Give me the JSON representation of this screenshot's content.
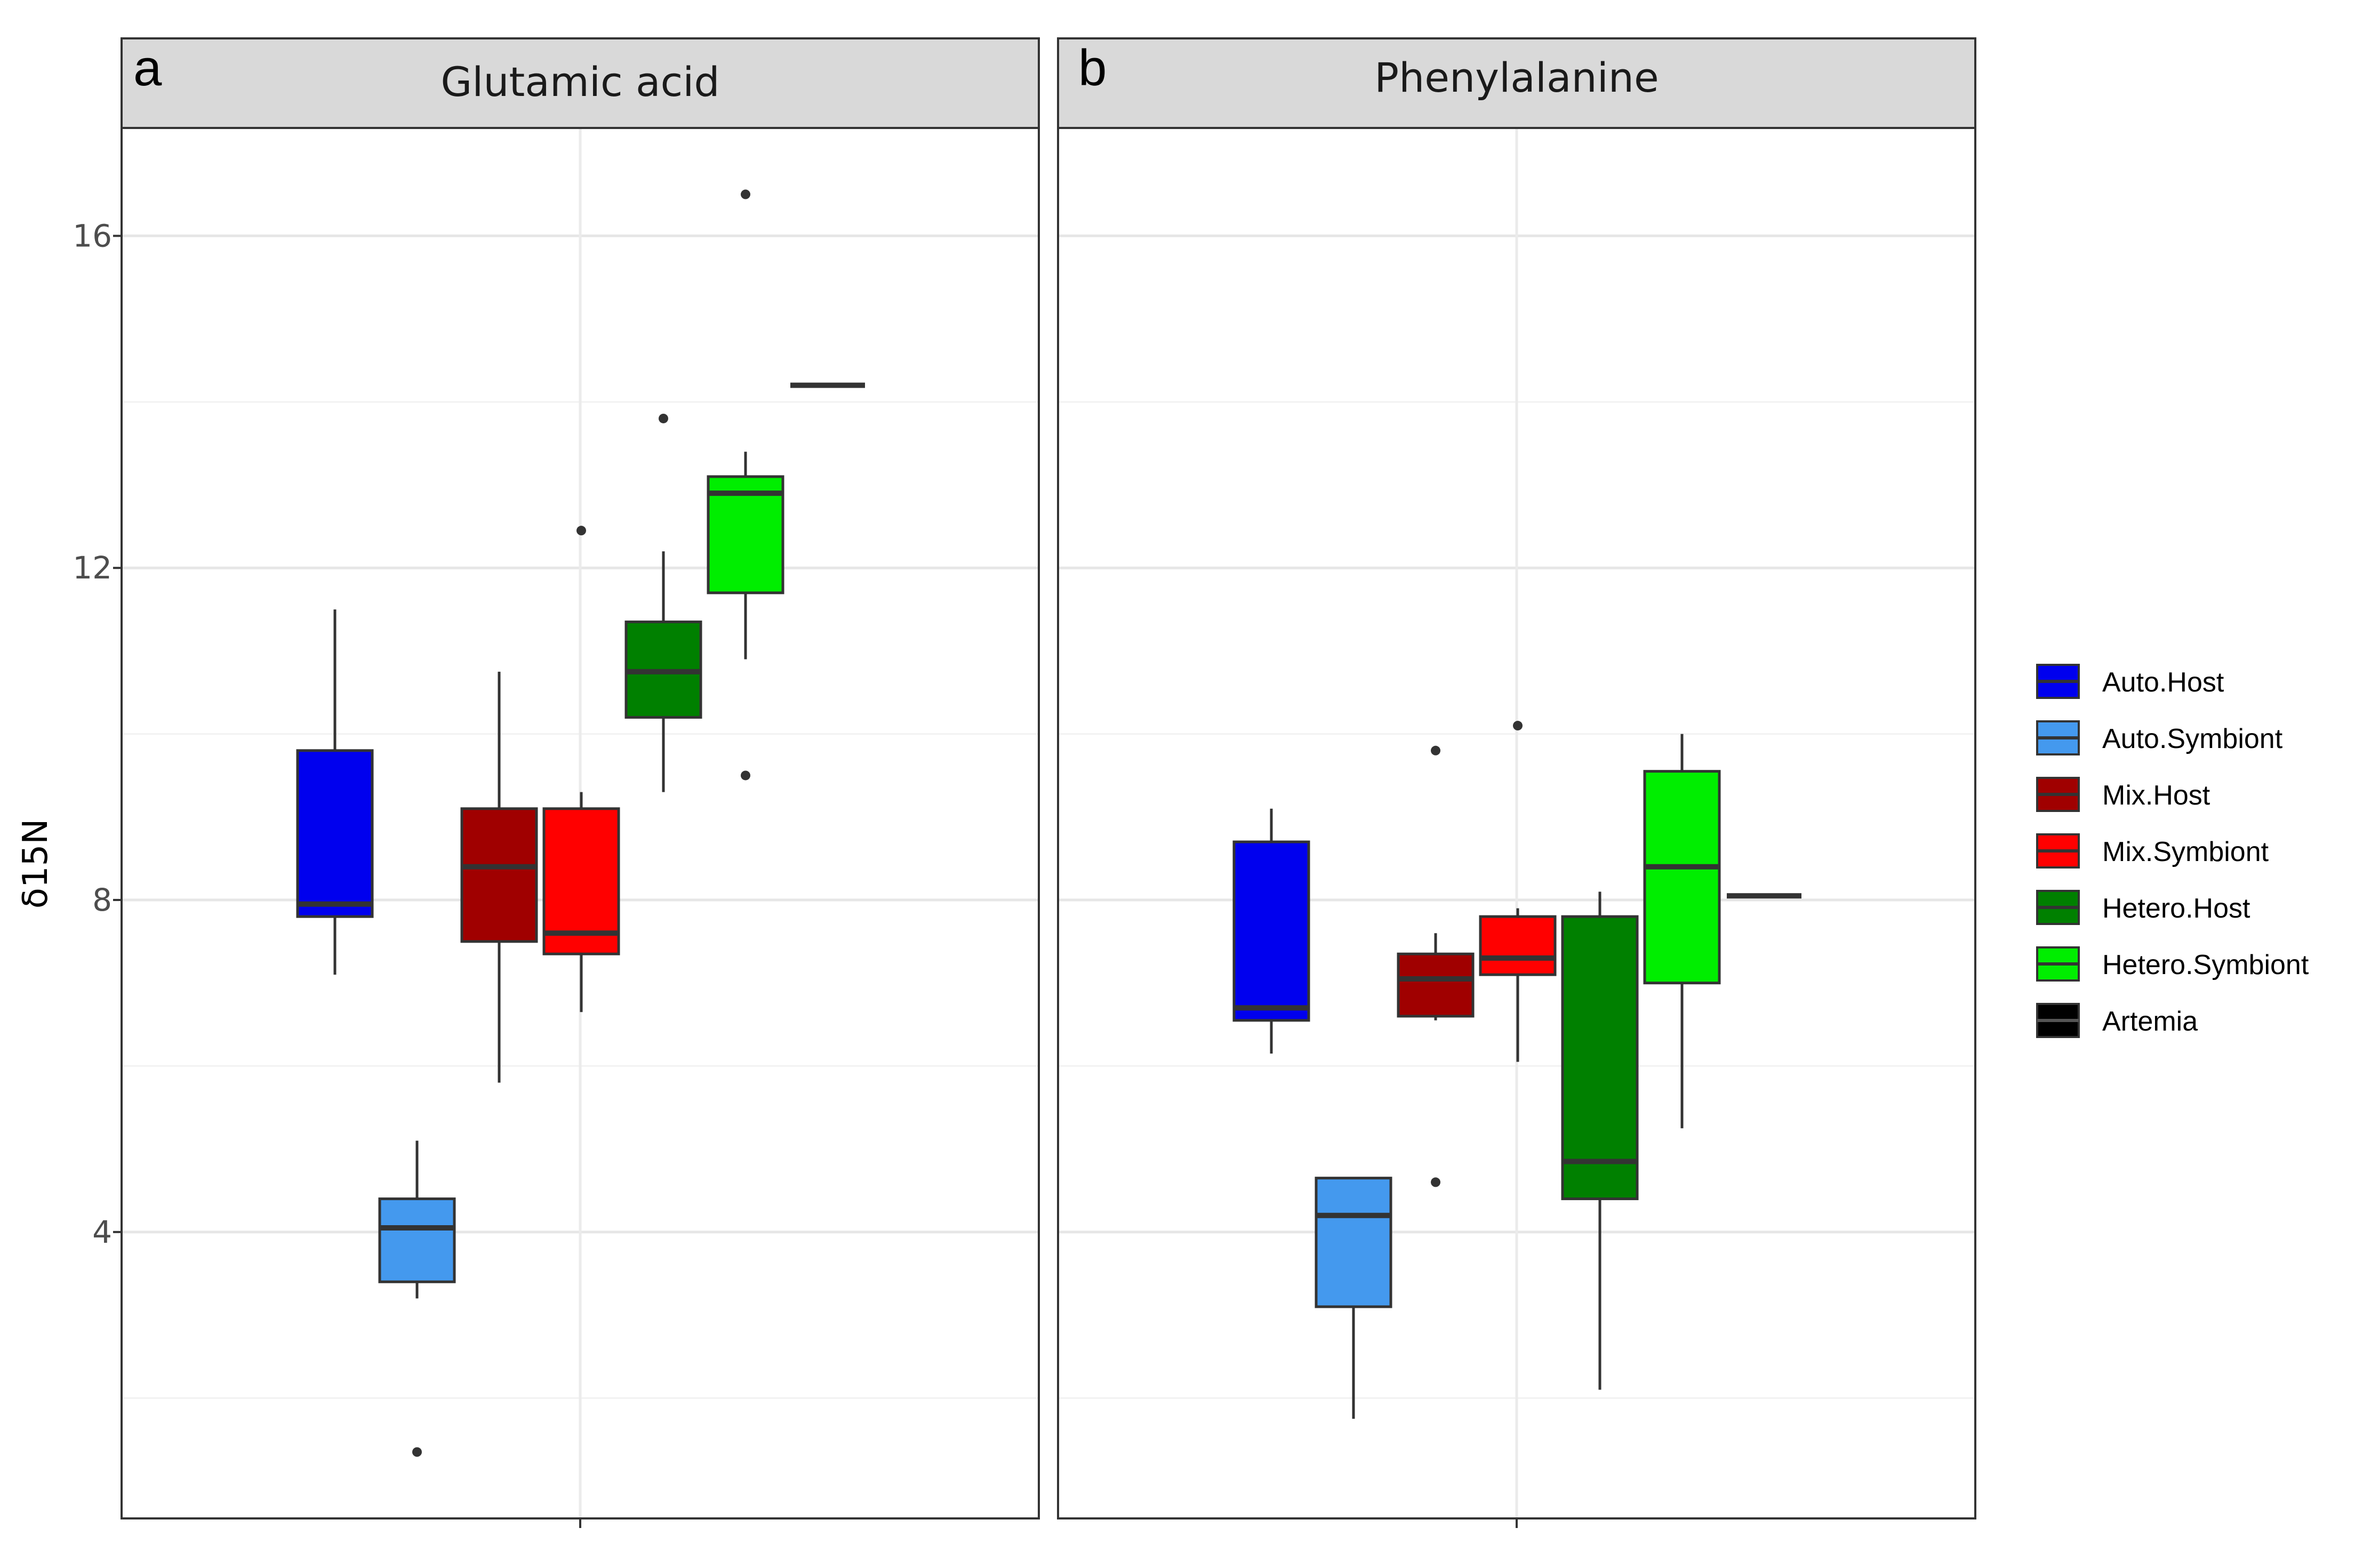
{
  "chart_data": {
    "type": "boxplot",
    "ylabel": "δ15N",
    "xlabel": "",
    "ylim": [
      0.55,
      17.3
    ],
    "yticks": [
      4,
      8,
      12,
      16
    ],
    "y_minor_gridlines": [
      2,
      6,
      10,
      14
    ],
    "grid": true,
    "legend_position": "right",
    "groups": [
      "Auto.Host",
      "Auto.Symbiont",
      "Mix.Host",
      "Mix.Symbiont",
      "Hetero.Host",
      "Hetero.Symbiont",
      "Artemia"
    ],
    "colors": {
      "Auto.Host": "#0000ee",
      "Auto.Symbiont": "#4499ee",
      "Mix.Host": "#a00000",
      "Mix.Symbiont": "#ff0000",
      "Hetero.Host": "#008000",
      "Hetero.Symbiont": "#00ee00",
      "Artemia": "#000000"
    },
    "panels": [
      {
        "tag": "a",
        "title": "Glutamic acid",
        "boxes": [
          {
            "group": "Auto.Host",
            "whisker_low": 7.1,
            "q1": 7.8,
            "median": 7.95,
            "q3": 9.8,
            "whisker_high": 11.5,
            "outliers": []
          },
          {
            "group": "Auto.Symbiont",
            "whisker_low": 3.2,
            "q1": 3.4,
            "median": 4.05,
            "q3": 4.4,
            "whisker_high": 5.1,
            "outliers": [
              1.35
            ]
          },
          {
            "group": "Mix.Host",
            "whisker_low": 5.8,
            "q1": 7.5,
            "median": 8.4,
            "q3": 9.1,
            "whisker_high": 10.75,
            "outliers": []
          },
          {
            "group": "Mix.Symbiont",
            "whisker_low": 6.65,
            "q1": 7.35,
            "median": 7.6,
            "q3": 9.1,
            "whisker_high": 9.3,
            "outliers": [
              12.45
            ]
          },
          {
            "group": "Hetero.Host",
            "whisker_low": 9.3,
            "q1": 10.2,
            "median": 10.75,
            "q3": 11.35,
            "whisker_high": 12.2,
            "outliers": [
              13.8
            ]
          },
          {
            "group": "Hetero.Symbiont",
            "whisker_low": 10.9,
            "q1": 11.7,
            "median": 12.9,
            "q3": 13.1,
            "whisker_high": 13.4,
            "outliers": [
              16.5,
              9.5
            ]
          },
          {
            "group": "Artemia",
            "whisker_low": 14.2,
            "q1": 14.2,
            "median": 14.2,
            "q3": 14.2,
            "whisker_high": 14.2,
            "outliers": []
          }
        ]
      },
      {
        "tag": "b",
        "title": "Phenylalanine",
        "boxes": [
          {
            "group": "Auto.Host",
            "whisker_low": 6.15,
            "q1": 6.55,
            "median": 6.7,
            "q3": 8.7,
            "whisker_high": 9.1,
            "outliers": []
          },
          {
            "group": "Auto.Symbiont",
            "whisker_low": 1.75,
            "q1": 3.1,
            "median": 4.2,
            "q3": 4.65,
            "whisker_high": 4.65,
            "outliers": []
          },
          {
            "group": "Mix.Host",
            "whisker_low": 6.55,
            "q1": 6.6,
            "median": 7.05,
            "q3": 7.35,
            "whisker_high": 7.6,
            "outliers": [
              9.8,
              4.6
            ]
          },
          {
            "group": "Mix.Symbiont",
            "whisker_low": 6.05,
            "q1": 7.1,
            "median": 7.3,
            "q3": 7.8,
            "whisker_high": 7.9,
            "outliers": [
              10.1
            ]
          },
          {
            "group": "Hetero.Host",
            "whisker_low": 2.1,
            "q1": 4.4,
            "median": 4.85,
            "q3": 7.8,
            "whisker_high": 8.1,
            "outliers": []
          },
          {
            "group": "Hetero.Symbiont",
            "whisker_low": 5.25,
            "q1": 7.0,
            "median": 8.4,
            "q3": 9.55,
            "whisker_high": 10.0,
            "outliers": []
          },
          {
            "group": "Artemia",
            "whisker_low": 8.05,
            "q1": 8.05,
            "median": 8.05,
            "q3": 8.05,
            "whisker_high": 8.05,
            "outliers": []
          }
        ]
      }
    ]
  }
}
